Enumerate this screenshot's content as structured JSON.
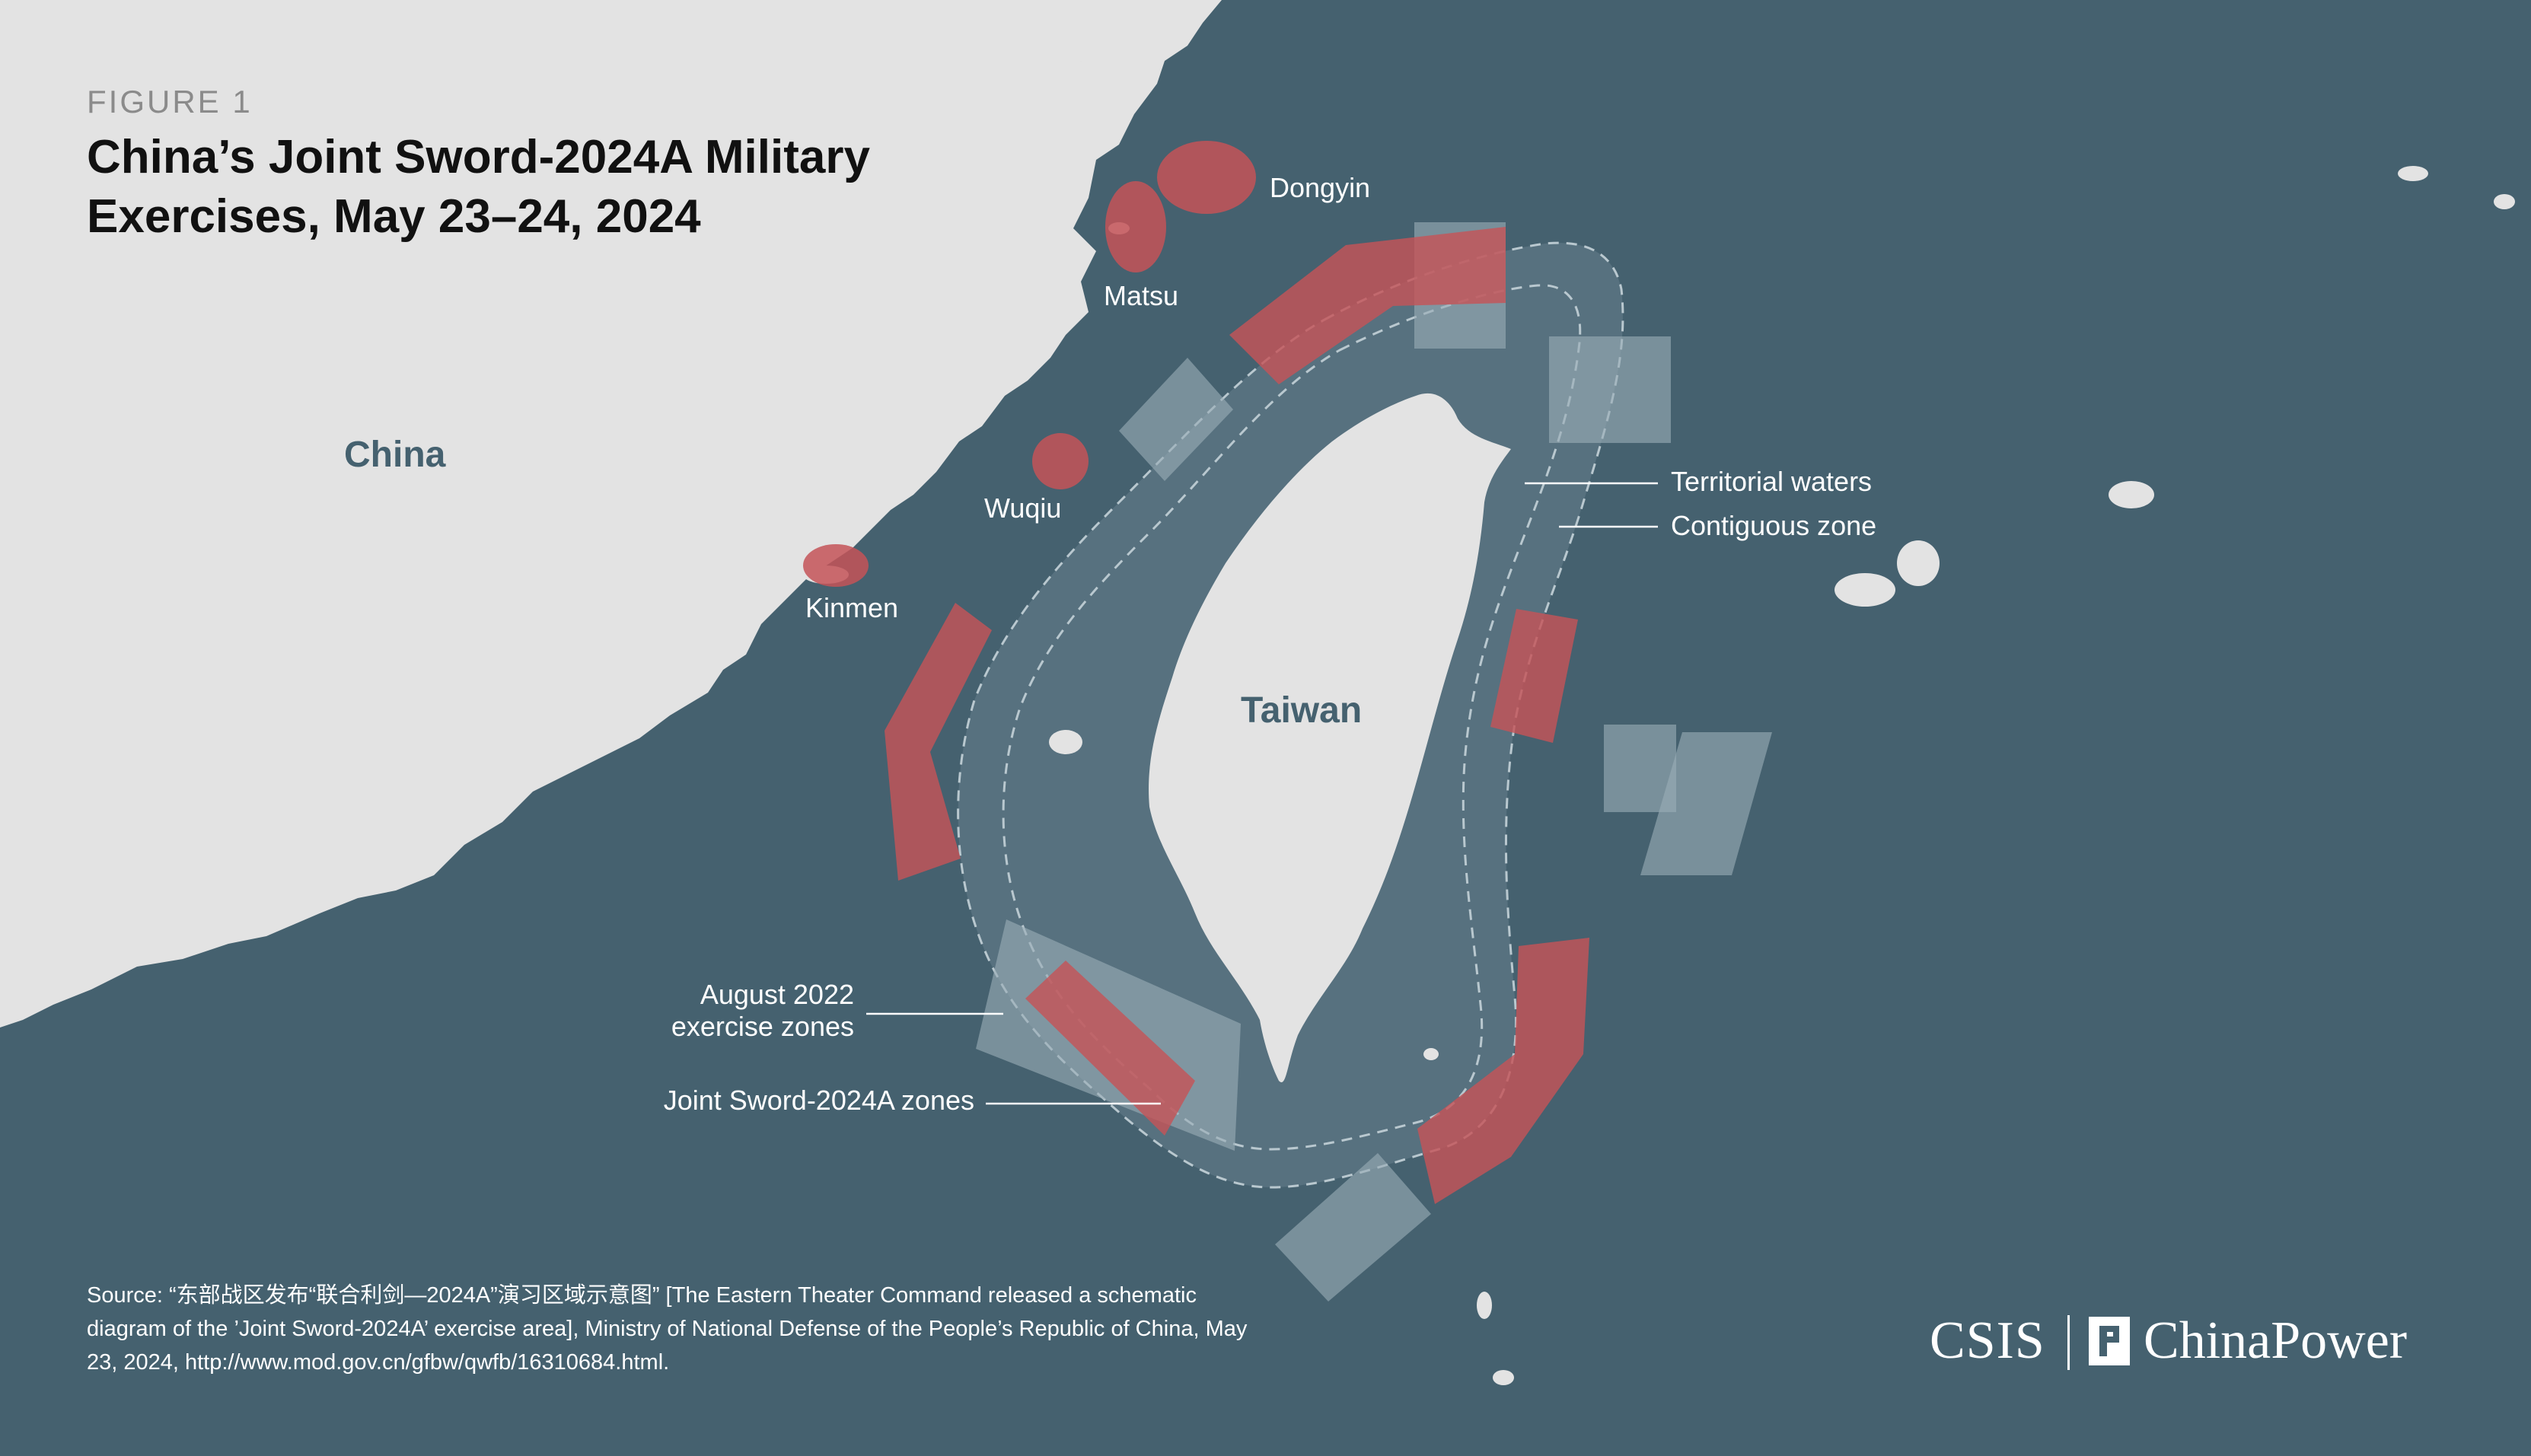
{
  "figure_label": "FIGURE 1",
  "title": "China’s Joint Sword-2024A Military Exercises, May 23–24, 2024",
  "labels": {
    "china": "China",
    "taiwan": "Taiwan",
    "dongyin": "Dongyin",
    "matsu": "Matsu",
    "wuqiu": "Wuqiu",
    "kinmen": "Kinmen"
  },
  "legend": {
    "territorial_waters": "Territorial waters",
    "contiguous_zone": "Contiguous zone",
    "august_2022_line1": "August 2022",
    "august_2022_line2": "exercise zones",
    "joint_sword": "Joint Sword-2024A zones"
  },
  "source": "Source: “东部战区发布“联合利剑—2024A”演习区域示意图” [The Eastern Theater Command released a schematic diagram of the ’Joint Sword-2024A’ exercise area], Ministry of National Defense of the People’s Republic of China, May 23, 2024, http://www.mod.gov.cn/gfbw/qwfb/16310684.html.",
  "branding": {
    "csis": "CSIS",
    "chinapower": "ChinaPower"
  },
  "colors": {
    "sea": "#45616f",
    "land": "#e3e3e3",
    "contiguous_zone": "#5a7482",
    "joint_sword_zone": "#c45458",
    "august_2022_zone": "#8fa3ad"
  }
}
